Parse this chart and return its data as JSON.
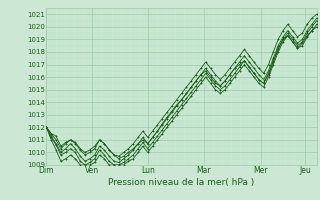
{
  "xlabel": "Pression niveau de la mer( hPa )",
  "ylim": [
    1009,
    1021.5
  ],
  "yticks": [
    1009,
    1010,
    1011,
    1012,
    1013,
    1014,
    1015,
    1016,
    1017,
    1018,
    1019,
    1020,
    1021
  ],
  "xtick_labels": [
    "Dim",
    "Ven",
    "Lun",
    "Mar",
    "Mer",
    "Jeu"
  ],
  "xtick_positions": [
    0,
    0.167,
    0.375,
    0.583,
    0.792,
    0.958
  ],
  "xlim": [
    0,
    1.0
  ],
  "bg_color": "#cce8d4",
  "grid_major_color": "#9dc9a8",
  "grid_minor_color": "#b8dfc2",
  "line_color": "#1a5c1a",
  "series": [
    [
      1012.0,
      1011.5,
      1011.3,
      1010.5,
      1010.8,
      1011.0,
      1010.8,
      1010.3,
      1010.0,
      1010.2,
      1010.5,
      1011.0,
      1010.7,
      1010.2,
      1009.8,
      1009.5,
      1009.7,
      1010.0,
      1010.3,
      1010.7,
      1011.0,
      1010.7,
      1011.2,
      1011.7,
      1012.3,
      1012.8,
      1013.3,
      1013.8,
      1014.2,
      1014.7,
      1015.2,
      1015.7,
      1016.2,
      1016.5,
      1016.0,
      1015.5,
      1015.3,
      1015.7,
      1016.2,
      1016.7,
      1017.0,
      1017.3,
      1016.8,
      1016.3,
      1015.8,
      1015.5,
      1016.2,
      1017.2,
      1018.2,
      1019.0,
      1019.3,
      1018.8,
      1018.3,
      1018.7,
      1019.3,
      1019.7,
      1020.0
    ],
    [
      1012.0,
      1011.2,
      1010.6,
      1009.8,
      1010.0,
      1010.3,
      1010.0,
      1009.3,
      1009.0,
      1009.2,
      1009.5,
      1010.2,
      1009.8,
      1009.3,
      1009.0,
      1009.0,
      1009.2,
      1009.5,
      1009.8,
      1010.3,
      1010.8,
      1010.3,
      1010.8,
      1011.3,
      1011.8,
      1012.3,
      1012.8,
      1013.3,
      1013.8,
      1014.3,
      1014.8,
      1015.3,
      1015.8,
      1016.3,
      1015.8,
      1015.3,
      1015.0,
      1015.3,
      1015.8,
      1016.3,
      1016.8,
      1017.3,
      1016.8,
      1016.3,
      1015.8,
      1015.5,
      1016.3,
      1017.3,
      1018.3,
      1019.0,
      1019.5,
      1019.0,
      1018.5,
      1018.8,
      1019.5,
      1020.0,
      1020.5
    ],
    [
      1012.0,
      1011.0,
      1010.2,
      1009.3,
      1009.5,
      1009.8,
      1009.5,
      1009.0,
      1009.0,
      1009.0,
      1009.2,
      1009.8,
      1009.5,
      1009.0,
      1009.0,
      1009.0,
      1009.0,
      1009.3,
      1009.5,
      1010.0,
      1010.5,
      1010.0,
      1010.5,
      1011.0,
      1011.5,
      1012.0,
      1012.5,
      1013.0,
      1013.5,
      1014.0,
      1014.5,
      1015.0,
      1015.5,
      1016.0,
      1015.5,
      1015.0,
      1014.7,
      1015.0,
      1015.5,
      1016.0,
      1016.5,
      1017.0,
      1016.5,
      1016.0,
      1015.5,
      1015.2,
      1016.0,
      1017.0,
      1018.0,
      1018.8,
      1019.3,
      1018.8,
      1018.3,
      1018.5,
      1019.2,
      1019.7,
      1020.2
    ],
    [
      1012.0,
      1011.3,
      1010.7,
      1010.0,
      1010.3,
      1010.7,
      1010.3,
      1009.7,
      1009.3,
      1009.5,
      1009.8,
      1010.5,
      1010.2,
      1009.7,
      1009.3,
      1009.2,
      1009.5,
      1009.8,
      1010.2,
      1010.7,
      1011.2,
      1010.7,
      1011.2,
      1011.7,
      1012.2,
      1012.7,
      1013.2,
      1013.7,
      1014.2,
      1014.7,
      1015.2,
      1015.7,
      1016.2,
      1016.7,
      1016.2,
      1015.7,
      1015.3,
      1015.7,
      1016.2,
      1016.7,
      1017.2,
      1017.7,
      1017.2,
      1016.7,
      1016.2,
      1015.8,
      1016.5,
      1017.5,
      1018.5,
      1019.2,
      1019.7,
      1019.2,
      1018.7,
      1019.0,
      1019.7,
      1020.2,
      1020.7
    ],
    [
      1012.0,
      1011.5,
      1011.0,
      1010.3,
      1010.7,
      1011.0,
      1010.7,
      1010.2,
      1009.8,
      1010.0,
      1010.3,
      1011.0,
      1010.7,
      1010.2,
      1009.8,
      1009.7,
      1010.0,
      1010.3,
      1010.7,
      1011.2,
      1011.7,
      1011.2,
      1011.7,
      1012.2,
      1012.7,
      1013.2,
      1013.7,
      1014.2,
      1014.7,
      1015.2,
      1015.7,
      1016.2,
      1016.7,
      1017.2,
      1016.7,
      1016.2,
      1015.8,
      1016.2,
      1016.7,
      1017.2,
      1017.7,
      1018.2,
      1017.7,
      1017.2,
      1016.7,
      1016.3,
      1017.0,
      1018.0,
      1019.0,
      1019.7,
      1020.2,
      1019.7,
      1019.2,
      1019.5,
      1020.2,
      1020.7,
      1021.0
    ]
  ]
}
